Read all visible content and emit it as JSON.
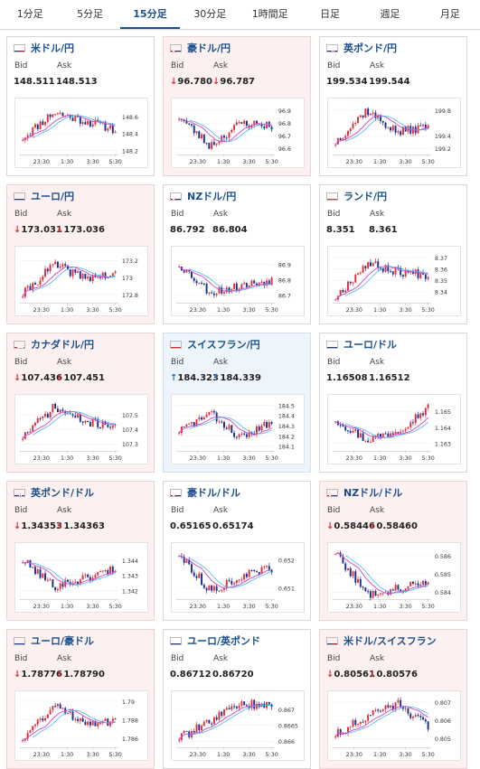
{
  "tabs": [
    {
      "label": "1分足",
      "active": false
    },
    {
      "label": "5分足",
      "active": false
    },
    {
      "label": "15分足",
      "active": true
    },
    {
      "label": "30分足",
      "active": false
    },
    {
      "label": "1時間足",
      "active": false
    },
    {
      "label": "日足",
      "active": false
    },
    {
      "label": "週足",
      "active": false
    },
    {
      "label": "月足",
      "active": false
    }
  ],
  "labels": {
    "bid": "Bid",
    "ask": "Ask"
  },
  "cards": [
    {
      "pair": "米ドル/円",
      "flag": "us",
      "trend": "none",
      "bid": "148.511",
      "ask": "148.513",
      "chart_data": {
        "type": "candlestick",
        "x_ticks": [
          "23:30",
          "1:30",
          "3:30",
          "5:30"
        ],
        "y_ticks": [
          "148.6",
          "148.4",
          "148.2"
        ],
        "ylim": [
          148.15,
          148.75
        ],
        "seed": 11,
        "path": [
          148.35,
          148.65,
          148.55,
          148.45
        ]
      }
    },
    {
      "pair": "豪ドル/円",
      "flag": "au",
      "trend": "down",
      "bid": "96.780",
      "ask": "96.787",
      "chart_data": {
        "type": "candlestick",
        "x_ticks": [
          "23:30",
          "1:30",
          "3:30",
          "5:30"
        ],
        "y_ticks": [
          "96.9",
          "96.8",
          "96.7",
          "96.6"
        ],
        "ylim": [
          96.55,
          96.95
        ],
        "seed": 23,
        "path": [
          96.85,
          96.62,
          96.8,
          96.78
        ]
      }
    },
    {
      "pair": "英ポンド/円",
      "flag": "uk",
      "trend": "none",
      "bid": "199.534",
      "ask": "199.544",
      "chart_data": {
        "type": "candlestick",
        "x_ticks": [
          "23:30",
          "1:30",
          "3:30",
          "5:30"
        ],
        "y_ticks": [
          "199.8",
          "199.4",
          "199.2"
        ],
        "ylim": [
          199.1,
          199.9
        ],
        "seed": 37,
        "path": [
          199.3,
          199.8,
          199.45,
          199.55
        ]
      }
    },
    {
      "pair": "ユーロ/円",
      "flag": "eu",
      "trend": "down",
      "bid": "173.031",
      "ask": "173.036",
      "chart_data": {
        "type": "candlestick",
        "x_ticks": [
          "23:30",
          "1:30",
          "3:30",
          "5:30"
        ],
        "y_ticks": [
          "173.2",
          "173",
          "172.8"
        ],
        "ylim": [
          172.7,
          173.3
        ],
        "seed": 41,
        "path": [
          172.8,
          173.15,
          173.0,
          173.03
        ]
      }
    },
    {
      "pair": "NZドル/円",
      "flag": "nz",
      "trend": "none",
      "bid": "86.792",
      "ask": "86.804",
      "chart_data": {
        "type": "candlestick",
        "x_ticks": [
          "23:30",
          "1:30",
          "3:30",
          "5:30"
        ],
        "y_ticks": [
          "86.9",
          "86.8",
          "86.7"
        ],
        "ylim": [
          86.65,
          86.98
        ],
        "seed": 53,
        "path": [
          86.9,
          86.72,
          86.76,
          86.8
        ]
      }
    },
    {
      "pair": "ランド/円",
      "flag": "za",
      "trend": "none",
      "bid": "8.351",
      "ask": "8.361",
      "chart_data": {
        "type": "candlestick",
        "x_ticks": [
          "23:30",
          "1:30",
          "3:30",
          "5:30"
        ],
        "y_ticks": [
          "8.37",
          "8.36",
          "8.35",
          "8.34"
        ],
        "ylim": [
          8.33,
          8.375
        ],
        "seed": 67,
        "path": [
          8.335,
          8.365,
          8.358,
          8.355
        ]
      }
    },
    {
      "pair": "カナダドル/円",
      "flag": "ca",
      "trend": "down",
      "bid": "107.436",
      "ask": "107.451",
      "chart_data": {
        "type": "candlestick",
        "x_ticks": [
          "23:30",
          "1:30",
          "3:30",
          "5:30"
        ],
        "y_ticks": [
          "107.5",
          "107.4",
          "107.3"
        ],
        "ylim": [
          107.25,
          107.6
        ],
        "seed": 71,
        "path": [
          107.35,
          107.55,
          107.45,
          107.43
        ]
      }
    },
    {
      "pair": "スイスフラン/円",
      "flag": "ch",
      "trend": "up",
      "bid": "184.323",
      "ask": "184.339",
      "chart_data": {
        "type": "candlestick",
        "x_ticks": [
          "23:30",
          "1:30",
          "3:30",
          "5:30"
        ],
        "y_ticks": [
          "184.5",
          "184.4",
          "184.3",
          "184.2",
          "184.1"
        ],
        "ylim": [
          184.05,
          184.55
        ],
        "seed": 83,
        "path": [
          184.25,
          184.42,
          184.18,
          184.33
        ]
      }
    },
    {
      "pair": "ユーロ/ドル",
      "flag": "eu",
      "trend": "none",
      "bid": "1.16508",
      "ask": "1.16512",
      "chart_data": {
        "type": "candlestick",
        "x_ticks": [
          "23:30",
          "1:30",
          "3:30",
          "5:30"
        ],
        "y_ticks": [
          "1.165",
          "1.164",
          "1.163"
        ],
        "ylim": [
          1.1625,
          1.1657
        ],
        "seed": 97,
        "path": [
          1.1645,
          1.1632,
          1.1638,
          1.1652
        ]
      }
    },
    {
      "pair": "英ポンド/ドル",
      "flag": "uk",
      "trend": "down",
      "bid": "1.34353",
      "ask": "1.34363",
      "chart_data": {
        "type": "candlestick",
        "x_ticks": [
          "23:30",
          "1:30",
          "3:30",
          "5:30"
        ],
        "y_ticks": [
          "1.344",
          "1.343",
          "1.342"
        ],
        "ylim": [
          1.3414,
          1.3448
        ],
        "seed": 101,
        "path": [
          1.344,
          1.3423,
          1.3428,
          1.3435
        ]
      }
    },
    {
      "pair": "豪ドル/ドル",
      "flag": "au",
      "trend": "none",
      "bid": "0.65165",
      "ask": "0.65174",
      "chart_data": {
        "type": "candlestick",
        "x_ticks": [
          "23:30",
          "1:30",
          "3:30",
          "5:30"
        ],
        "y_ticks": [
          "0.652",
          "0.651"
        ],
        "ylim": [
          0.6506,
          0.6524
        ],
        "seed": 113,
        "path": [
          0.6522,
          0.6509,
          0.6514,
          0.6517
        ]
      }
    },
    {
      "pair": "NZドル/ドル",
      "flag": "nz",
      "trend": "down",
      "bid": "0.58446",
      "ask": "0.58460",
      "chart_data": {
        "type": "candlestick",
        "x_ticks": [
          "23:30",
          "1:30",
          "3:30",
          "5:30"
        ],
        "y_ticks": [
          "0.586",
          "0.585",
          "0.584"
        ],
        "ylim": [
          0.5836,
          0.5864
        ],
        "seed": 127,
        "path": [
          0.5862,
          0.5839,
          0.5842,
          0.5845
        ]
      }
    },
    {
      "pair": "ユーロ/豪ドル",
      "flag": "eu",
      "trend": "down",
      "bid": "1.78776",
      "ask": "1.78790",
      "chart_data": {
        "type": "candlestick",
        "x_ticks": [
          "23:30",
          "1:30",
          "3:30",
          "5:30"
        ],
        "y_ticks": [
          "1.79",
          "1.788",
          "1.786"
        ],
        "ylim": [
          1.785,
          1.7905
        ],
        "seed": 131,
        "path": [
          1.786,
          1.7895,
          1.7878,
          1.7878
        ]
      }
    },
    {
      "pair": "ユーロ/英ポンド",
      "flag": "eu",
      "trend": "none",
      "bid": "0.86712",
      "ask": "0.86720",
      "chart_data": {
        "type": "candlestick",
        "x_ticks": [
          "23:30",
          "1:30",
          "3:30",
          "5:30"
        ],
        "y_ticks": [
          "0.867",
          "0.8665",
          "0.866"
        ],
        "ylim": [
          0.8658,
          0.8674
        ],
        "seed": 139,
        "path": [
          0.8661,
          0.8666,
          0.8672,
          0.8671
        ]
      }
    },
    {
      "pair": "米ドル/スイスフラン",
      "flag": "us",
      "trend": "down",
      "bid": "0.80561",
      "ask": "0.80576",
      "chart_data": {
        "type": "candlestick",
        "x_ticks": [
          "23:30",
          "1:30",
          "3:30",
          "5:30"
        ],
        "y_ticks": [
          "0.807",
          "0.806",
          "0.805"
        ],
        "ylim": [
          0.8045,
          0.8073
        ],
        "seed": 151,
        "path": [
          0.8052,
          0.8062,
          0.8069,
          0.8056
        ]
      }
    }
  ]
}
